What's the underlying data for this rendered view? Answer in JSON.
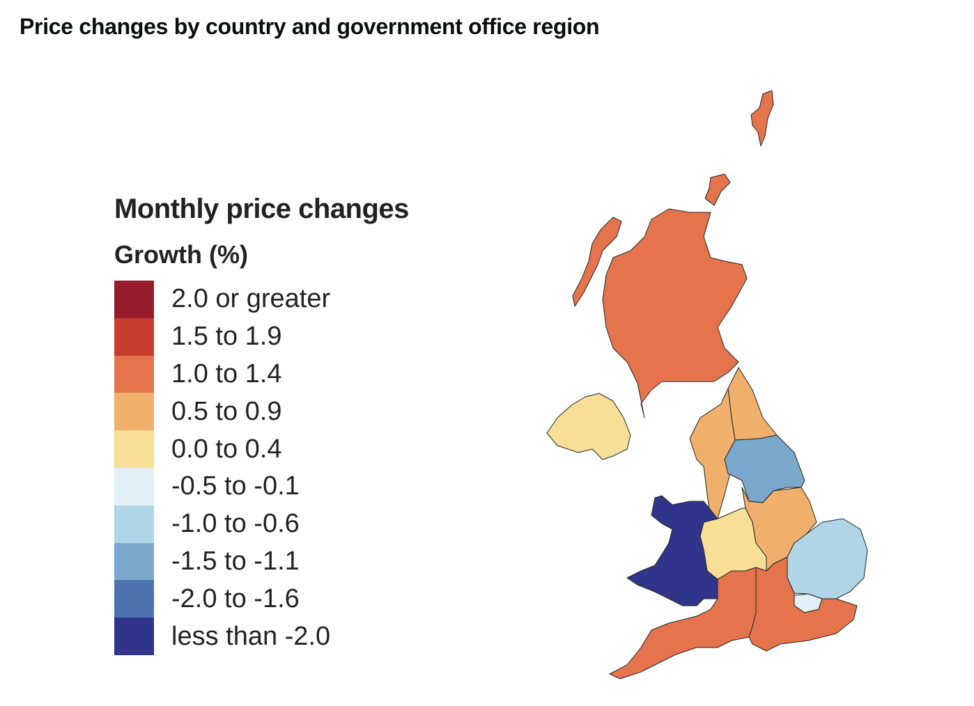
{
  "title": "Price changes by country and government office region",
  "legend": {
    "title": "Monthly price changes",
    "subtitle": "Growth (%)",
    "bins": [
      {
        "label": "2.0 or greater",
        "color": "#961c2c"
      },
      {
        "label": "1.5 to 1.9",
        "color": "#c83d30"
      },
      {
        "label": "1.0 to 1.4",
        "color": "#e5744d"
      },
      {
        "label": "0.5 to 0.9",
        "color": "#f0b06b"
      },
      {
        "label": "0.0 to 0.4",
        "color": "#f7df98"
      },
      {
        "label": "-0.5 to -0.1",
        "color": "#e1f0f7"
      },
      {
        "label": "-1.0 to -0.6",
        "color": "#b0d5e7"
      },
      {
        "label": "-1.5 to -1.1",
        "color": "#7aa8cc"
      },
      {
        "label": "-2.0 to -1.6",
        "color": "#4d72b0"
      },
      {
        "label": "less than -2.0",
        "color": "#30348a"
      }
    ]
  },
  "regions": {
    "scotland": 2,
    "northern_ireland": 4,
    "north_east": 3,
    "north_west": 3,
    "yorkshire_and_the_humber": 7,
    "east_midlands": 3,
    "west_midlands": 4,
    "wales": 9,
    "east_of_england": 6,
    "london": 5,
    "south_west": 2,
    "south_east": 2
  }
}
